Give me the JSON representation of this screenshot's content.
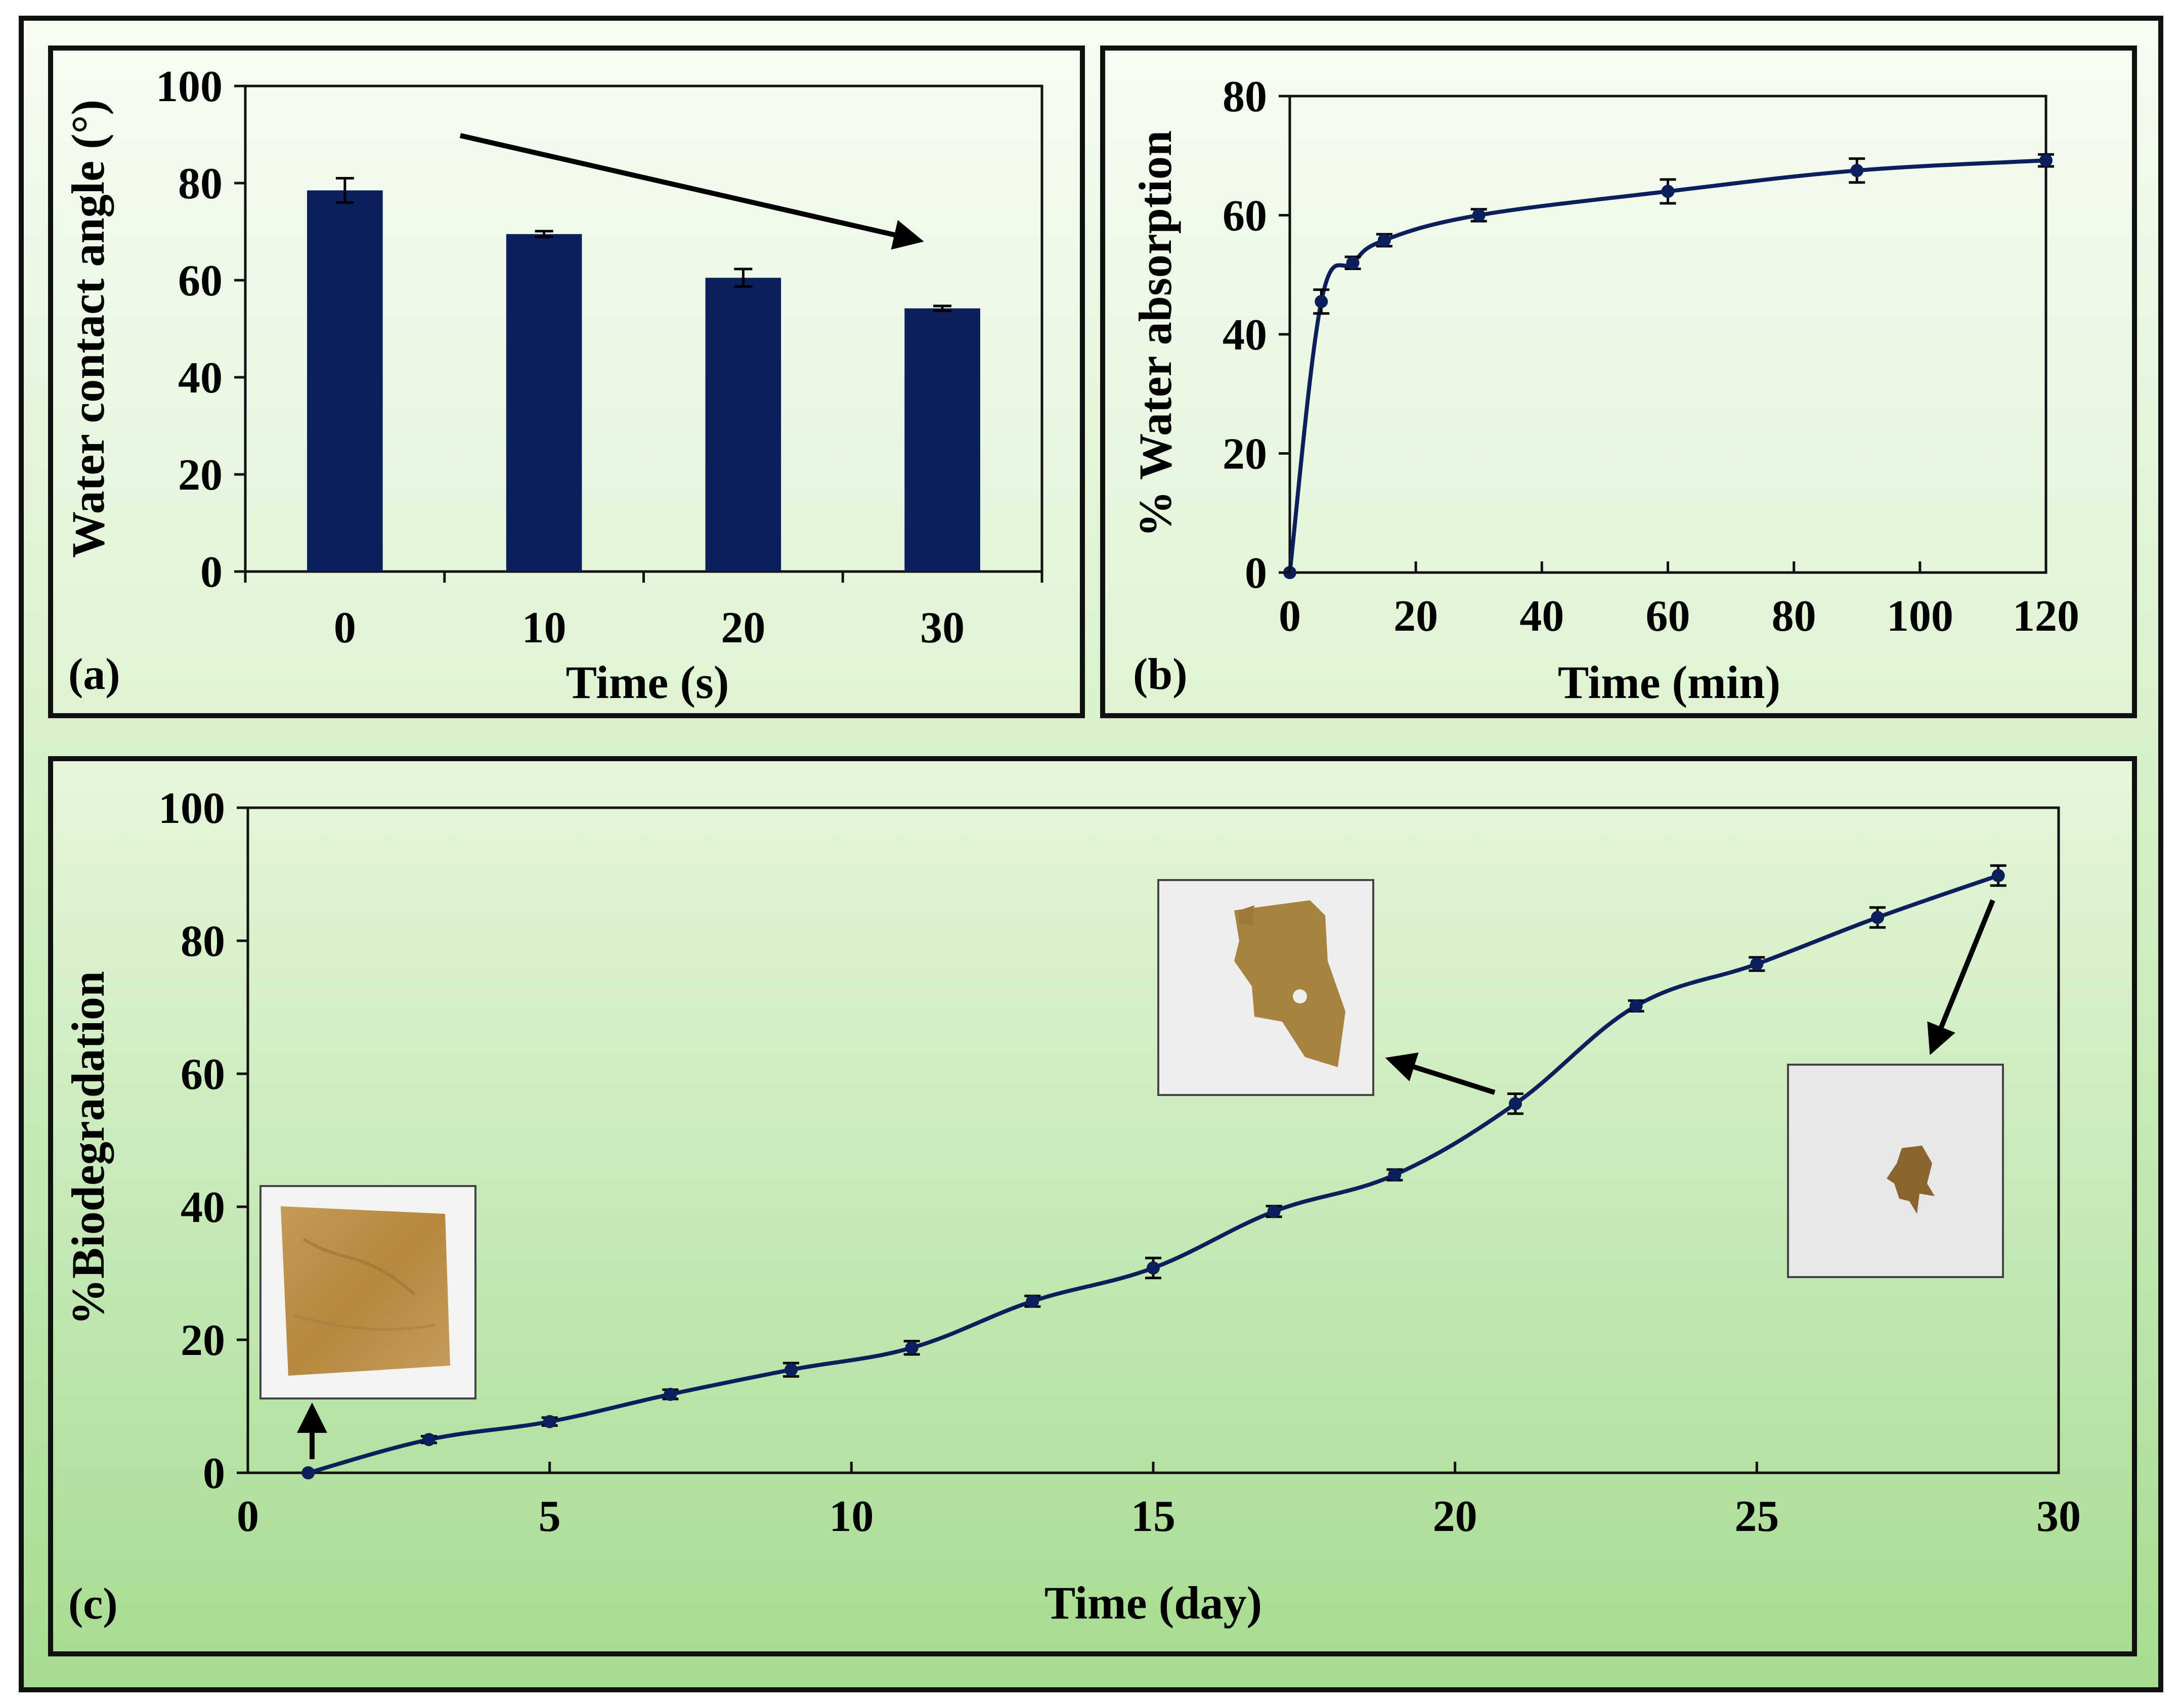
{
  "colors": {
    "series": "#0c1f5c",
    "bar": "#0c1f5c",
    "panel_bg_top": "#f4fbef",
    "panel_bg_bottom": "#a9dd95",
    "border": "#111111"
  },
  "chart_data": [
    {
      "panel_label": "(a)",
      "type": "bar",
      "title": "",
      "xlabel": "Time (s)",
      "ylabel": "Water contact angle (°)",
      "categories": [
        "0",
        "10",
        "20",
        "30"
      ],
      "values": [
        78.5,
        69.5,
        60.5,
        54.2
      ],
      "errors": [
        2.5,
        0.6,
        1.8,
        0.5
      ],
      "ylim": [
        0,
        100
      ],
      "yticks": [
        0,
        20,
        40,
        60,
        80,
        100
      ],
      "annotation": "arrow-decreasing-trend",
      "grid": false
    },
    {
      "panel_label": "(b)",
      "type": "line",
      "title": "",
      "xlabel": "Time (min)",
      "ylabel": "% Water absorption",
      "x": [
        0,
        5,
        10,
        15,
        30,
        60,
        90,
        120
      ],
      "y": [
        0,
        45.5,
        52,
        55.8,
        60,
        64,
        67.5,
        69.2
      ],
      "errors": [
        0,
        2,
        1,
        1,
        1,
        2,
        2,
        1
      ],
      "xlim": [
        0,
        120
      ],
      "ylim": [
        0,
        80
      ],
      "xticks": [
        0,
        20,
        40,
        60,
        80,
        100,
        120
      ],
      "yticks": [
        0,
        20,
        40,
        60,
        80
      ],
      "grid": false
    },
    {
      "panel_label": "(c)",
      "type": "line",
      "title": "",
      "xlabel": "Time (day)",
      "ylabel": "%Biodegradation",
      "x": [
        1,
        3,
        5,
        7,
        9,
        11,
        13,
        15,
        17,
        19,
        21,
        23,
        25,
        27,
        29
      ],
      "y": [
        0,
        5,
        7.7,
        11.8,
        15.5,
        18.8,
        25.8,
        30.8,
        39.3,
        44.8,
        55.5,
        70.2,
        76.5,
        83.5,
        89.8
      ],
      "errors": [
        0,
        0.5,
        0.6,
        0.7,
        1,
        1,
        0.8,
        1.5,
        0.8,
        0.8,
        1.5,
        0.8,
        1,
        1.5,
        1.5
      ],
      "xlim": [
        0,
        30
      ],
      "ylim": [
        0,
        100
      ],
      "xticks": [
        0,
        5,
        10,
        15,
        20,
        25,
        30
      ],
      "yticks": [
        0,
        20,
        40,
        60,
        80,
        100
      ],
      "insets": [
        "intact-film-photo",
        "partially-degraded-film-photo",
        "mostly-degraded-film-photo"
      ],
      "grid": false
    }
  ]
}
